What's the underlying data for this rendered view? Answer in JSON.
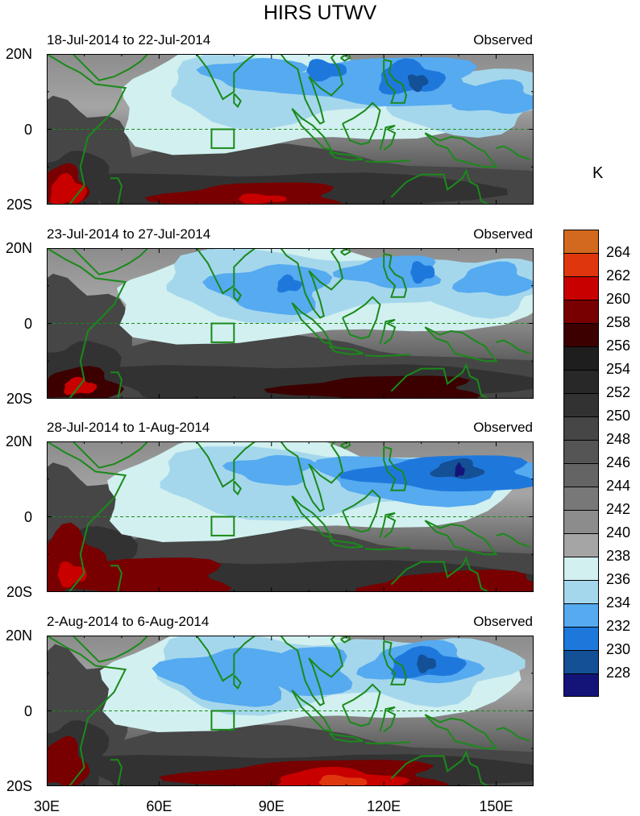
{
  "title": "HIRS UTWV",
  "unit": "K",
  "y_ticks": [
    "20N",
    "0",
    "20S"
  ],
  "x_ticks": [
    "30E",
    "60E",
    "90E",
    "120E",
    "150E"
  ],
  "panels": [
    {
      "period": "18-Jul-2014 to 22-Jul-2014",
      "tag": "Observed"
    },
    {
      "period": "23-Jul-2014 to 27-Jul-2014",
      "tag": "Observed"
    },
    {
      "period": "28-Jul-2014 to 1-Aug-2014",
      "tag": "Observed"
    },
    {
      "period": "2-Aug-2014 to 6-Aug-2014",
      "tag": "Observed"
    }
  ],
  "colorbar": {
    "labels": [
      "264",
      "262",
      "260",
      "258",
      "256",
      "254",
      "252",
      "250",
      "248",
      "246",
      "244",
      "242",
      "240",
      "238",
      "236",
      "234",
      "232",
      "230",
      "228"
    ],
    "colors": [
      "#d2691e",
      "#e0360e",
      "#c80000",
      "#780000",
      "#3c0000",
      "#1e1e1e",
      "#282828",
      "#323232",
      "#464646",
      "#555555",
      "#646464",
      "#787878",
      "#8c8c8c",
      "#a5a5a5",
      "#d2f0f0",
      "#a5d7ec",
      "#55aaf0",
      "#1e78dc",
      "#145096",
      "#141478"
    ]
  },
  "lon_range": [
    30,
    160
  ],
  "lat_range": [
    -20,
    20
  ],
  "box_region": {
    "lon": [
      74,
      80
    ],
    "lat": [
      -5,
      0
    ]
  }
}
